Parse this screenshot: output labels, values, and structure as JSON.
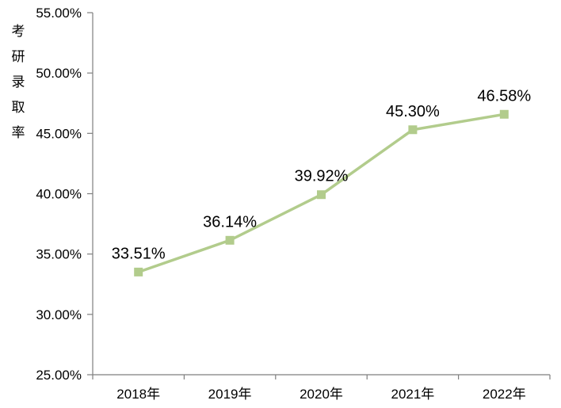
{
  "chart_data": {
    "type": "line",
    "title": "",
    "xlabel": "",
    "ylabel": "考研录取率",
    "categories": [
      "2018年",
      "2019年",
      "2020年",
      "2021年",
      "2022年"
    ],
    "series": [
      {
        "name": "考研录取率",
        "values": [
          33.51,
          36.14,
          39.92,
          45.3,
          46.58
        ],
        "labels": [
          "33.51%",
          "36.14%",
          "39.92%",
          "45.30%",
          "46.58%"
        ]
      }
    ],
    "ylim": [
      25,
      55
    ],
    "ytick_step": 5,
    "ytick_labels": [
      "25.00%",
      "30.00%",
      "35.00%",
      "40.00%",
      "45.00%",
      "50.00%",
      "55.00%"
    ],
    "grid": false,
    "legend": "none",
    "marker_shape": "square",
    "colors": {
      "line": "#b2cc8c",
      "marker": "#b2cc8c",
      "axis": "#7f7f7f",
      "text": "#000000"
    }
  }
}
